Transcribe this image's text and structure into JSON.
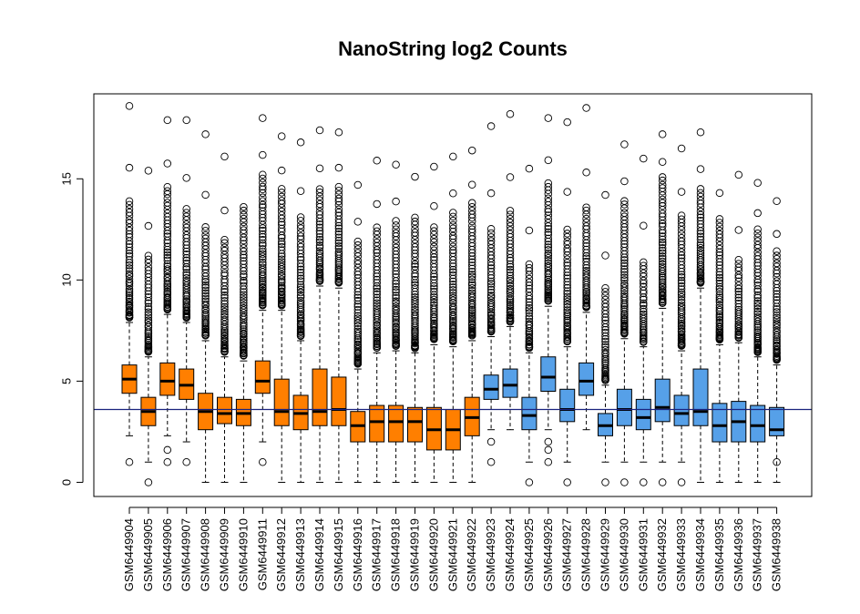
{
  "chart_data": {
    "type": "boxplot",
    "title": "NanoString log2 Counts",
    "xlabel": "",
    "ylabel": "",
    "ylim": [
      -0.7,
      19.2
    ],
    "yticks": [
      0,
      5,
      10,
      15
    ],
    "reference_line": 3.6,
    "colors": {
      "orange": "#FF7F00",
      "blue": "#56A0E8",
      "line": "#1a237e",
      "axis": "#000000"
    },
    "categories": [
      "GSM6449904",
      "GSM6449905",
      "GSM6449906",
      "GSM6449907",
      "GSM6449908",
      "GSM6449909",
      "GSM6449910",
      "GSM6449911",
      "GSM6449912",
      "GSM6449913",
      "GSM6449914",
      "GSM6449915",
      "GSM6449916",
      "GSM6449917",
      "GSM6449918",
      "GSM6449919",
      "GSM6449920",
      "GSM6449921",
      "GSM6449922",
      "GSM6449923",
      "GSM6449924",
      "GSM6449925",
      "GSM6449926",
      "GSM6449927",
      "GSM6449928",
      "GSM6449929",
      "GSM6449930",
      "GSM6449931",
      "GSM6449932",
      "GSM6449933",
      "GSM6449934",
      "GSM6449935",
      "GSM6449936",
      "GSM6449937",
      "GSM6449938"
    ],
    "groups": [
      "orange",
      "orange",
      "orange",
      "orange",
      "orange",
      "orange",
      "orange",
      "orange",
      "orange",
      "orange",
      "orange",
      "orange",
      "orange",
      "orange",
      "orange",
      "orange",
      "orange",
      "orange",
      "orange",
      "blue",
      "blue",
      "blue",
      "blue",
      "blue",
      "blue",
      "blue",
      "blue",
      "blue",
      "blue",
      "blue",
      "blue",
      "blue",
      "blue",
      "blue",
      "blue"
    ],
    "boxes": [
      {
        "wlo": 2.3,
        "q1": 4.4,
        "med": 5.1,
        "q3": 5.8,
        "whi": 7.9,
        "outTop": 13.9,
        "outMax": 18.6,
        "outLow": [
          1.0
        ]
      },
      {
        "wlo": 1.0,
        "q1": 2.8,
        "med": 3.5,
        "q3": 4.2,
        "whi": 6.2,
        "outTop": 11.2,
        "outMax": 15.4,
        "outLow": [
          0.0
        ]
      },
      {
        "wlo": 2.3,
        "q1": 4.3,
        "med": 5.0,
        "q3": 5.9,
        "whi": 8.3,
        "outTop": 14.6,
        "outMax": 17.9,
        "outLow": [
          1.6,
          1.0
        ]
      },
      {
        "wlo": 2.0,
        "q1": 4.1,
        "med": 4.8,
        "q3": 5.6,
        "whi": 7.9,
        "outTop": 13.5,
        "outMax": 17.9,
        "outLow": [
          1.0
        ]
      },
      {
        "wlo": 0.0,
        "q1": 2.6,
        "med": 3.5,
        "q3": 4.4,
        "whi": 7.0,
        "outTop": 12.6,
        "outMax": 17.2,
        "outLow": []
      },
      {
        "wlo": 0.0,
        "q1": 2.9,
        "med": 3.4,
        "q3": 4.2,
        "whi": 6.2,
        "outTop": 12.0,
        "outMax": 16.1,
        "outLow": []
      },
      {
        "wlo": 0.0,
        "q1": 2.8,
        "med": 3.4,
        "q3": 4.1,
        "whi": 6.0,
        "outTop": 13.6,
        "outMax": 13.6,
        "outLow": []
      },
      {
        "wlo": 2.0,
        "q1": 4.4,
        "med": 5.0,
        "q3": 6.0,
        "whi": 8.5,
        "outTop": 15.2,
        "outMax": 18.0,
        "outLow": [
          1.0
        ]
      },
      {
        "wlo": 0.0,
        "q1": 2.8,
        "med": 3.5,
        "q3": 5.1,
        "whi": 8.5,
        "outTop": 14.5,
        "outMax": 17.1,
        "outLow": []
      },
      {
        "wlo": 0.0,
        "q1": 2.6,
        "med": 3.4,
        "q3": 4.3,
        "whi": 7.0,
        "outTop": 13.1,
        "outMax": 16.8,
        "outLow": []
      },
      {
        "wlo": 0.0,
        "q1": 2.8,
        "med": 3.5,
        "q3": 5.6,
        "whi": 9.7,
        "outTop": 14.5,
        "outMax": 17.4,
        "outLow": []
      },
      {
        "wlo": 0.0,
        "q1": 2.8,
        "med": 3.6,
        "q3": 5.2,
        "whi": 9.6,
        "outTop": 14.6,
        "outMax": 17.3,
        "outLow": []
      },
      {
        "wlo": 0.0,
        "q1": 2.0,
        "med": 2.8,
        "q3": 3.5,
        "whi": 5.6,
        "outTop": 11.9,
        "outMax": 14.7,
        "outLow": []
      },
      {
        "wlo": 0.0,
        "q1": 2.0,
        "med": 3.0,
        "q3": 3.8,
        "whi": 6.4,
        "outTop": 12.6,
        "outMax": 15.9,
        "outLow": []
      },
      {
        "wlo": 0.0,
        "q1": 2.0,
        "med": 3.0,
        "q3": 3.8,
        "whi": 6.5,
        "outTop": 12.9,
        "outMax": 15.7,
        "outLow": []
      },
      {
        "wlo": 0.0,
        "q1": 2.0,
        "med": 3.0,
        "q3": 3.7,
        "whi": 6.4,
        "outTop": 13.1,
        "outMax": 15.1,
        "outLow": []
      },
      {
        "wlo": 0.0,
        "q1": 1.6,
        "med": 2.6,
        "q3": 3.7,
        "whi": 6.8,
        "outTop": 12.6,
        "outMax": 15.6,
        "outLow": []
      },
      {
        "wlo": 0.0,
        "q1": 1.6,
        "med": 2.6,
        "q3": 3.6,
        "whi": 6.7,
        "outTop": 13.3,
        "outMax": 16.1,
        "outLow": []
      },
      {
        "wlo": 0.0,
        "q1": 2.3,
        "med": 3.2,
        "q3": 4.2,
        "whi": 7.0,
        "outTop": 13.8,
        "outMax": 16.4,
        "outLow": []
      },
      {
        "wlo": 2.6,
        "q1": 4.1,
        "med": 4.6,
        "q3": 5.3,
        "whi": 7.2,
        "outTop": 12.5,
        "outMax": 17.6,
        "outLow": [
          2.0,
          1.0
        ]
      },
      {
        "wlo": 2.6,
        "q1": 4.2,
        "med": 4.8,
        "q3": 5.6,
        "whi": 7.7,
        "outTop": 13.4,
        "outMax": 18.2,
        "outLow": []
      },
      {
        "wlo": 1.0,
        "q1": 2.6,
        "med": 3.3,
        "q3": 4.2,
        "whi": 6.4,
        "outTop": 10.8,
        "outMax": 15.5,
        "outLow": [
          0.0
        ]
      },
      {
        "wlo": 2.6,
        "q1": 4.5,
        "med": 5.2,
        "q3": 6.2,
        "whi": 8.7,
        "outTop": 14.8,
        "outMax": 18.0,
        "outLow": [
          2.0,
          1.6,
          1.0
        ]
      },
      {
        "wlo": 1.0,
        "q1": 3.0,
        "med": 3.6,
        "q3": 4.6,
        "whi": 6.7,
        "outTop": 12.5,
        "outMax": 17.8,
        "outLow": [
          0.0
        ]
      },
      {
        "wlo": 2.6,
        "q1": 4.3,
        "med": 5.0,
        "q3": 5.9,
        "whi": 8.4,
        "outTop": 13.6,
        "outMax": 18.5,
        "outLow": []
      },
      {
        "wlo": 1.0,
        "q1": 2.3,
        "med": 2.8,
        "q3": 3.4,
        "whi": 4.8,
        "outTop": 9.6,
        "outMax": 14.2,
        "outLow": [
          0.0
        ]
      },
      {
        "wlo": 1.0,
        "q1": 2.8,
        "med": 3.6,
        "q3": 4.6,
        "whi": 7.1,
        "outTop": 13.9,
        "outMax": 16.7,
        "outLow": [
          0.0
        ]
      },
      {
        "wlo": 1.0,
        "q1": 2.6,
        "med": 3.2,
        "q3": 4.1,
        "whi": 6.7,
        "outTop": 10.9,
        "outMax": 16.0,
        "outLow": [
          0.0
        ]
      },
      {
        "wlo": 1.0,
        "q1": 3.0,
        "med": 3.7,
        "q3": 5.1,
        "whi": 8.6,
        "outTop": 15.1,
        "outMax": 17.2,
        "outLow": [
          0.0
        ]
      },
      {
        "wlo": 1.0,
        "q1": 2.8,
        "med": 3.4,
        "q3": 4.3,
        "whi": 6.5,
        "outTop": 13.2,
        "outMax": 16.5,
        "outLow": [
          0.0
        ]
      },
      {
        "wlo": 0.0,
        "q1": 2.8,
        "med": 3.5,
        "q3": 5.6,
        "whi": 9.6,
        "outTop": 14.5,
        "outMax": 17.3,
        "outLow": []
      },
      {
        "wlo": 0.0,
        "q1": 2.0,
        "med": 2.8,
        "q3": 3.9,
        "whi": 6.8,
        "outTop": 13.0,
        "outMax": 14.3,
        "outLow": []
      },
      {
        "wlo": 0.0,
        "q1": 2.0,
        "med": 3.0,
        "q3": 4.0,
        "whi": 6.9,
        "outTop": 11.0,
        "outMax": 15.2,
        "outLow": []
      },
      {
        "wlo": 0.0,
        "q1": 2.0,
        "med": 2.8,
        "q3": 3.8,
        "whi": 6.2,
        "outTop": 12.5,
        "outMax": 14.8,
        "outLow": []
      },
      {
        "wlo": 0.0,
        "q1": 2.3,
        "med": 2.6,
        "q3": 3.7,
        "whi": 5.8,
        "outTop": 11.4,
        "outMax": 13.9,
        "outLow": [
          1.0
        ]
      }
    ]
  }
}
